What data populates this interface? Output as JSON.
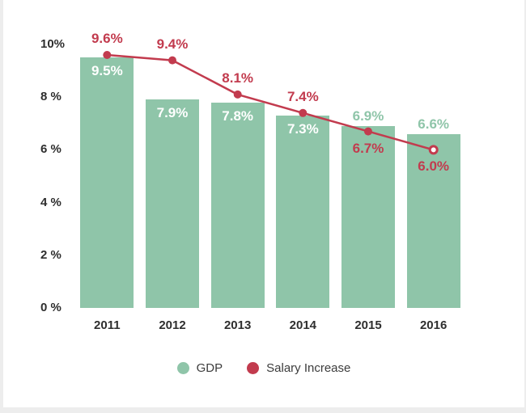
{
  "chart_data": {
    "type": "bar",
    "categories": [
      "2011",
      "2012",
      "2013",
      "2014",
      "2015",
      "2016"
    ],
    "series": [
      {
        "name": "GDP",
        "type": "bar",
        "color": "#8fc5a9",
        "values": [
          9.5,
          7.9,
          7.8,
          7.3,
          6.9,
          6.6
        ],
        "labels": [
          "9.5%",
          "7.9%",
          "7.8%",
          "7.3%",
          "6.9%",
          "6.6%"
        ],
        "label_positions": [
          "inside",
          "inside",
          "inside",
          "inside",
          "above",
          "above"
        ],
        "inside_label_color": "#ffffff"
      },
      {
        "name": "Salary Increase",
        "type": "line",
        "color": "#c23b4e",
        "values": [
          9.6,
          9.4,
          8.1,
          7.4,
          6.7,
          6.0
        ],
        "labels": [
          "9.6%",
          "9.4%",
          "8.1%",
          "7.4%",
          "6.7%",
          "6.0%"
        ],
        "label_positions": [
          "above",
          "above",
          "above",
          "above",
          "below",
          "below"
        ],
        "markers": [
          "filled",
          "filled",
          "filled",
          "filled",
          "filled",
          "open"
        ]
      }
    ],
    "ylim": [
      0,
      10
    ],
    "yticks": [
      {
        "value": 0,
        "label": "0 %"
      },
      {
        "value": 2,
        "label": "2 %"
      },
      {
        "value": 4,
        "label": "4 %"
      },
      {
        "value": 6,
        "label": "6 %"
      },
      {
        "value": 8,
        "label": "8 %"
      },
      {
        "value": 10,
        "label": "10%"
      }
    ],
    "grid": false,
    "legend_position": "bottom-center",
    "legend": [
      {
        "label": "GDP",
        "color": "#8fc5a9"
      },
      {
        "label": "Salary Increase",
        "color": "#c23b4e"
      }
    ]
  }
}
